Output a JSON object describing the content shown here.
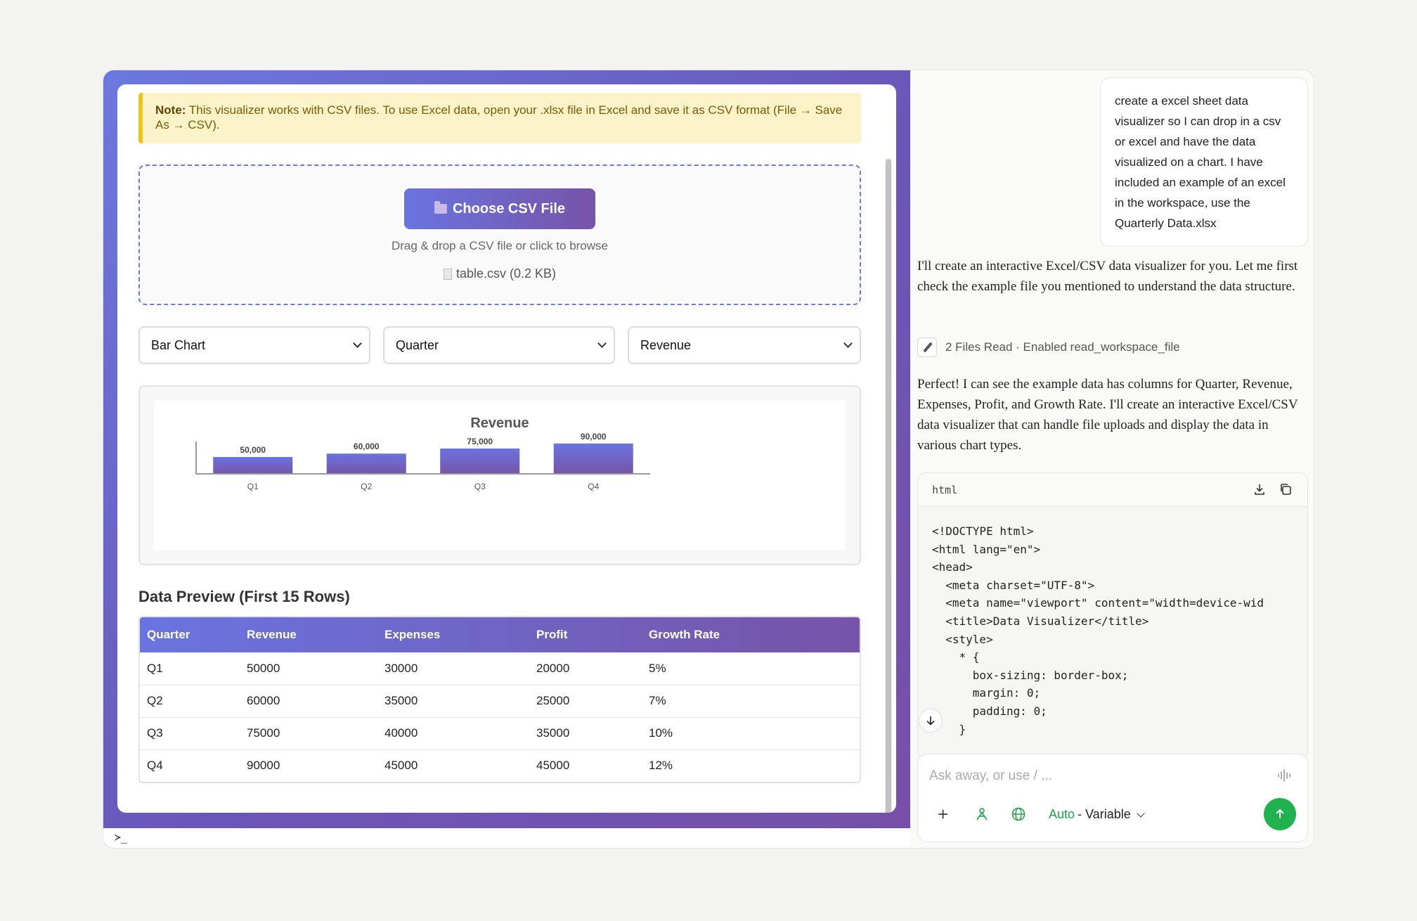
{
  "note": {
    "label": "Note:",
    "text": " This visualizer works with CSV files. To use Excel data, open your .xlsx file in Excel and save it as CSV format (File → Save As → CSV)."
  },
  "upload": {
    "button_label": "Choose CSV File",
    "hint": "Drag & drop a CSV file or click to browse",
    "file_name": "table.csv (0.2 KB)"
  },
  "controls": {
    "chart_type": "Bar Chart",
    "x_axis": "Quarter",
    "y_axis": "Revenue"
  },
  "chart_data": {
    "type": "bar",
    "title": "Revenue",
    "categories": [
      "Q1",
      "Q2",
      "Q3",
      "Q4"
    ],
    "values": [
      50000,
      60000,
      75000,
      90000
    ],
    "value_labels": [
      "50,000",
      "60,000",
      "75,000",
      "90,000"
    ],
    "ylim": [
      0,
      200000
    ],
    "colors": {
      "bar_top": "#6a74e0",
      "bar_bottom": "#7654a8"
    }
  },
  "preview": {
    "title": "Data Preview (First 15 Rows)",
    "columns": [
      "Quarter",
      "Revenue",
      "Expenses",
      "Profit",
      "Growth Rate"
    ],
    "rows": [
      [
        "Q1",
        "50000",
        "30000",
        "20000",
        "5%"
      ],
      [
        "Q2",
        "60000",
        "35000",
        "25000",
        "7%"
      ],
      [
        "Q3",
        "75000",
        "40000",
        "35000",
        "10%"
      ],
      [
        "Q4",
        "90000",
        "45000",
        "45000",
        "12%"
      ]
    ]
  },
  "terminal": {
    "prompt": "≻_"
  },
  "chat": {
    "user_message": "create a excel sheet data visualizer so I can drop in a csv or excel and have the data visualized on a chart. I have included an example of an excel in the workspace, use the Quarterly Data.xlsx",
    "assistant_1": "I'll create an interactive Excel/CSV data visualizer for you. Let me first check the example file you mentioned to understand the data structure.",
    "tool_status": "2 Files Read · Enabled read_workspace_file",
    "assistant_2": "Perfect! I can see the example data has columns for Quarter, Revenue, Expenses, Profit, and Growth Rate. I'll create an interactive Excel/CSV data visualizer that can handle file uploads and display the data in various chart types.",
    "code_lang": "html",
    "code": "<!DOCTYPE html>\n<html lang=\"en\">\n<head>\n  <meta charset=\"UTF-8\">\n  <meta name=\"viewport\" content=\"width=device-wid\n  <title>Data Visualizer</title>\n  <style>\n    * {\n      box-sizing: border-box;\n      margin: 0;\n      padding: 0;\n    }",
    "input_placeholder": "Ask away, or use / ...",
    "model_auto": "Auto",
    "model_rest": " - Variable"
  },
  "accent": "#1fb24f"
}
